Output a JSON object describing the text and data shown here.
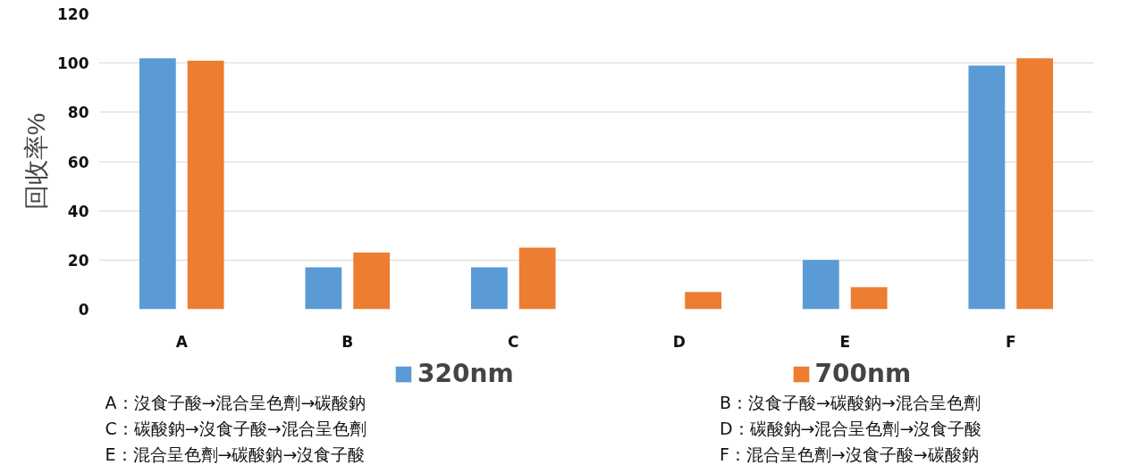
{
  "chart_data": {
    "type": "bar",
    "ylabel": "回收率%",
    "categories": [
      "A",
      "B",
      "C",
      "D",
      "E",
      "F"
    ],
    "series": [
      {
        "name": "320nm",
        "color": "#5b9bd5",
        "values": [
          102,
          17,
          17,
          0,
          20,
          99
        ]
      },
      {
        "name": "700nm",
        "color": "#ed7d31",
        "values": [
          101,
          23,
          25,
          7,
          9,
          102
        ]
      }
    ],
    "ylim": [
      0,
      120
    ],
    "yticks": [
      0,
      20,
      40,
      60,
      80,
      100,
      120
    ],
    "grid": "y",
    "legend": "bottom",
    "annotations": [
      "A：沒食子酸→混合呈色劑→碳酸鈉",
      "B：沒食子酸→碳酸鈉→混合呈色劑",
      "C：碳酸鈉→沒食子酸→混合呈色劑",
      "D：碳酸鈉→混合呈色劑→沒食子酸",
      "E：混合呈色劑→碳酸鈉→沒食子酸",
      "F：混合呈色劑→沒食子酸→碳酸鈉"
    ]
  }
}
